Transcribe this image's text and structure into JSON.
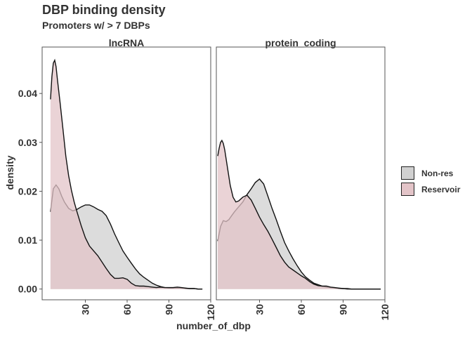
{
  "chart_data": {
    "type": "area",
    "title": "DBP binding density",
    "subtitle": "Promoters w/ > 7 DBPs",
    "xlabel": "number_of_dbp",
    "ylabel": "density",
    "xlim": [
      -1,
      120
    ],
    "ylim": [
      -0.0022,
      0.0495
    ],
    "x_ticks": [
      30,
      60,
      90,
      120
    ],
    "y_ticks": [
      0.0,
      0.01,
      0.02,
      0.03,
      0.04
    ],
    "y_tick_labels": [
      "0.00",
      "0.01",
      "0.02",
      "0.03",
      "0.04"
    ],
    "grid": false,
    "legend_position": "right",
    "legend": [
      {
        "name": "Non-res",
        "color": "#d0d0d0"
      },
      {
        "name": "Reservoir",
        "color": "#e3c4c8"
      }
    ],
    "panels": [
      {
        "label": "lncRNA",
        "series": [
          {
            "name": "Non-res",
            "color": "#d0d0d0",
            "x": [
              5,
              7,
              9,
              11,
              13,
              15,
              18,
              21,
              24,
              27,
              30,
              33,
              36,
              39,
              42,
              45,
              48,
              51,
              54,
              57,
              60,
              63,
              66,
              69,
              72,
              75,
              78,
              81,
              84,
              87,
              90,
              93,
              96,
              99,
              102,
              105,
              108,
              111,
              114
            ],
            "y": [
              0.0158,
              0.0205,
              0.0213,
              0.0205,
              0.019,
              0.0178,
              0.0165,
              0.016,
              0.0163,
              0.0168,
              0.0172,
              0.0172,
              0.0168,
              0.0163,
              0.0159,
              0.015,
              0.0133,
              0.0113,
              0.0095,
              0.0078,
              0.0065,
              0.0053,
              0.0041,
              0.0031,
              0.0024,
              0.0018,
              0.0012,
              0.0008,
              0.0005,
              0.0003,
              0.0002,
              0.0002,
              0.0002,
              0.0002,
              0.0001,
              0.0001,
              0.0001,
              0.0,
              0.0
            ]
          },
          {
            "name": "Reservoir",
            "color": "#e3c4c8",
            "x": [
              5,
              6,
              7,
              8,
              9,
              10,
              12,
              14,
              16,
              18,
              20,
              22,
              24,
              27,
              30,
              33,
              36,
              39,
              42,
              45,
              48,
              51,
              54,
              57,
              60,
              63,
              66,
              69,
              72,
              75,
              78,
              81,
              84,
              87,
              90,
              93,
              96,
              99,
              102,
              105,
              108,
              111,
              114
            ],
            "y": [
              0.0388,
              0.0435,
              0.0462,
              0.0468,
              0.0455,
              0.0428,
              0.0378,
              0.0325,
              0.0272,
              0.0232,
              0.0202,
              0.0178,
              0.0158,
              0.013,
              0.0105,
              0.0088,
              0.0078,
              0.0068,
              0.0055,
              0.0042,
              0.003,
              0.0022,
              0.0022,
              0.0023,
              0.002,
              0.0012,
              0.0007,
              0.0006,
              0.0006,
              0.0005,
              0.0004,
              0.0003,
              0.0004,
              0.0003,
              0.0003,
              0.0003,
              0.0004,
              0.0003,
              0.0002,
              0.0001,
              0.0001,
              0.0,
              0.0
            ]
          }
        ]
      },
      {
        "label": "protein_coding",
        "series": [
          {
            "name": "Non-res",
            "color": "#d0d0d0",
            "x": [
              0,
              2,
              4,
              6,
              8,
              10,
              12,
              15,
              18,
              21,
              24,
              27,
              30,
              33,
              36,
              39,
              42,
              45,
              48,
              51,
              54,
              57,
              60,
              63,
              66,
              69,
              72,
              75,
              78,
              81,
              84,
              87,
              90,
              93,
              96,
              99,
              102,
              105,
              108,
              111,
              114,
              117
            ],
            "y": [
              0.0098,
              0.0128,
              0.014,
              0.0138,
              0.0142,
              0.015,
              0.0158,
              0.0168,
              0.0178,
              0.0193,
              0.0205,
              0.0218,
              0.0225,
              0.0215,
              0.019,
              0.0165,
              0.0142,
              0.0118,
              0.0095,
              0.0078,
              0.0062,
              0.0048,
              0.0035,
              0.0025,
              0.0018,
              0.0012,
              0.0009,
              0.0006,
              0.0004,
              0.0003,
              0.0002,
              0.0001,
              0.0001,
              0.0,
              0.0,
              0.0,
              0.0,
              0.0,
              0.0,
              0.0,
              0.0,
              0.0
            ]
          },
          {
            "name": "Reservoir",
            "color": "#e3c4c8",
            "x": [
              0,
              1,
              2,
              3,
              4,
              5,
              7,
              9,
              11,
              13,
              15,
              18,
              21,
              24,
              27,
              30,
              33,
              36,
              39,
              42,
              45,
              48,
              51,
              54,
              57,
              60,
              63,
              66,
              69,
              72,
              75,
              78,
              81,
              84,
              87,
              90,
              93,
              96,
              99,
              102,
              105,
              108,
              111,
              114,
              117
            ],
            "y": [
              0.0272,
              0.0288,
              0.03,
              0.0304,
              0.0298,
              0.0285,
              0.0248,
              0.0212,
              0.0188,
              0.0178,
              0.018,
              0.0188,
              0.0192,
              0.0182,
              0.0165,
              0.0147,
              0.0132,
              0.0118,
              0.0102,
              0.0085,
              0.0068,
              0.0055,
              0.0045,
              0.0039,
              0.0033,
              0.0027,
              0.0022,
              0.0015,
              0.001,
              0.0007,
              0.0006,
              0.0006,
              0.0004,
              0.0003,
              0.0002,
              0.0001,
              0.0001,
              0.0,
              0.0,
              0.0,
              0.0,
              0.0,
              0.0,
              0.0,
              0.0
            ]
          }
        ]
      }
    ]
  }
}
